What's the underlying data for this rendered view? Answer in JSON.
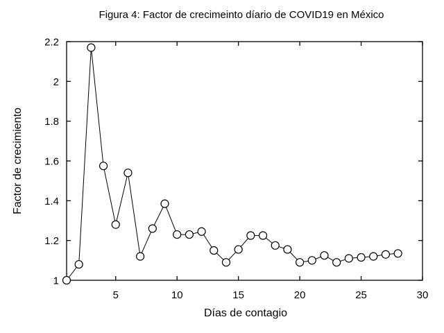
{
  "figure": {
    "background": "#ffffff",
    "text_color": "#000000",
    "frame_color": "#000000"
  },
  "chart_data": {
    "type": "line",
    "title": "Figura 4: Factor de crecimeinto díario de COVID19 en México",
    "xlabel": "Días de contagio",
    "ylabel": "Factor de crecimiento",
    "x": [
      1,
      2,
      3,
      4,
      5,
      6,
      7,
      8,
      9,
      10,
      11,
      12,
      13,
      14,
      15,
      16,
      17,
      18,
      19,
      20,
      21,
      22,
      23,
      24,
      25,
      26,
      27,
      28
    ],
    "y": [
      1.0,
      1.08,
      2.17,
      1.575,
      1.28,
      1.54,
      1.12,
      1.26,
      1.385,
      1.23,
      1.23,
      1.245,
      1.15,
      1.09,
      1.155,
      1.225,
      1.225,
      1.175,
      1.155,
      1.09,
      1.1,
      1.125,
      1.09,
      1.11,
      1.115,
      1.12,
      1.13,
      1.135
    ],
    "xlim": [
      1,
      30
    ],
    "ylim": [
      1,
      2.2
    ],
    "xticks": [
      5,
      10,
      15,
      20,
      25,
      30
    ],
    "yticks": [
      1,
      1.2,
      1.4,
      1.6,
      1.8,
      2,
      2.2
    ],
    "grid": false,
    "legend": false,
    "marker": "open-circle",
    "line_color": "#000000",
    "marker_fill": "#ffffff",
    "marker_stroke": "#000000"
  }
}
